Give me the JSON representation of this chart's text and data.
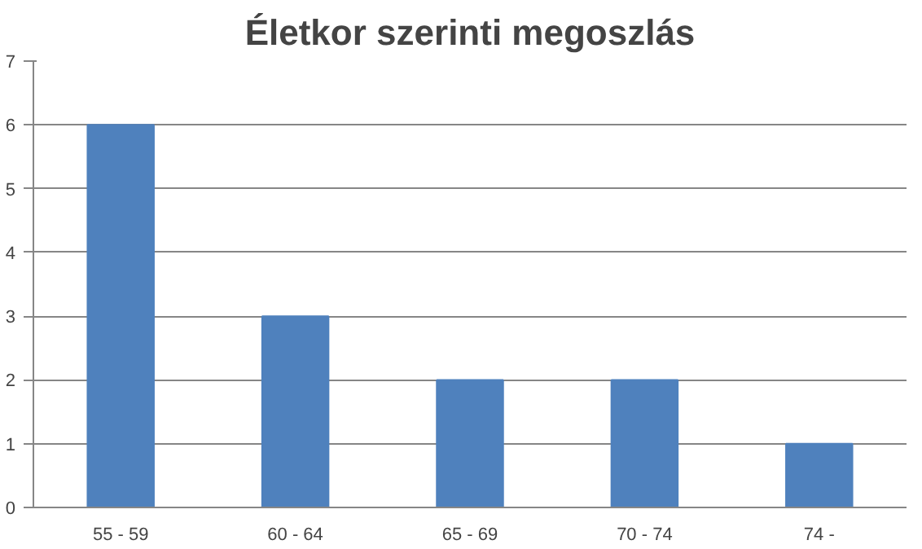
{
  "chart_data": {
    "type": "bar",
    "title": "Életkor szerinti megoszlás",
    "categories": [
      "55 - 59",
      "60 - 64",
      "65 - 69",
      "70 - 74",
      "74 -"
    ],
    "values": [
      6,
      3,
      2,
      2,
      1
    ],
    "color": "#4f81bd",
    "ylim": [
      0,
      7
    ],
    "yticks": [
      0,
      1,
      2,
      3,
      4,
      5,
      6,
      7
    ],
    "grid": "y"
  }
}
